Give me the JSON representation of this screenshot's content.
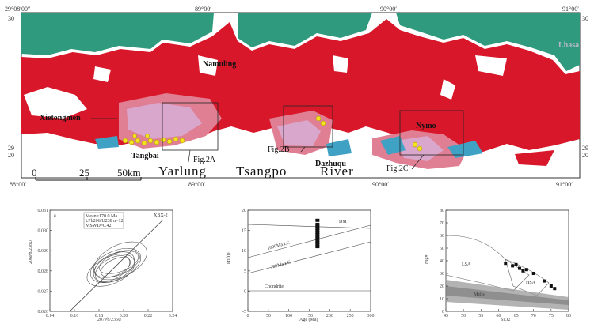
{
  "map": {
    "coords": {
      "top_left": "29°08′00″",
      "top_89": "89°00′",
      "top_90": "90°00′",
      "top_right": "91°00′",
      "left_top": "30",
      "left_29": "29",
      "left_20": "20",
      "right_top": "30",
      "right_29": "29",
      "right_20": "20",
      "bottom_left": "88°00′",
      "bottom_89": "89°00′",
      "bottom_90": "90°00′",
      "bottom_right": "91°00′"
    },
    "places": {
      "namuling": "Namuling",
      "xietongmen": "Xietongmen",
      "tangbai": "Tangbai",
      "dazhuqu": "Dazhuqu",
      "nymo": "Nymo",
      "lhasa": "Lhasa"
    },
    "figs": {
      "fig2a": "Fig.2A",
      "fig2b": "Fig.2B",
      "fig2c": "Fig.2C"
    },
    "river": [
      "Yarlung",
      "Tsangpo",
      "River"
    ],
    "scale": {
      "s0": "0",
      "s25": "25",
      "s50": "50km"
    },
    "colors": {
      "red": "#d8182a",
      "green": "#2f9a7e",
      "pink": "#e07f93",
      "lilac": "#d9a6cc",
      "blue": "#3fa1c4",
      "yellow": "#f3e21c"
    }
  },
  "panels": {
    "concordia": {
      "sample": "XBX-2",
      "inset": [
        "Mean=170.0 Ma",
        "±Pb206/U238 n=12",
        "MSWD=0.42"
      ],
      "x_label": "207Pb/235U",
      "y_label": "206Pb/238U",
      "x_ticks": [
        "0.14",
        "0.16",
        "0.18",
        "0.20",
        "0.22",
        "0.24"
      ],
      "y_ticks": [
        "0.031",
        "0.030",
        "0.029",
        "0.028",
        "0.027",
        "0.026"
      ],
      "panel_tag": "a"
    },
    "epsilon": {
      "y_label": "εHf(t)",
      "x_label": "Age (Ma)",
      "y_ticks": [
        "20",
        "15",
        "10",
        "5",
        "0",
        "-5"
      ],
      "x_ticks": [
        "0",
        "50",
        "100",
        "150",
        "200",
        "250",
        "300"
      ],
      "dm": "DM",
      "lc1": "1000Ma LC",
      "lc2": "720Ma LC",
      "chur": "Chondrite"
    },
    "mg": {
      "y_label": "Mg#",
      "x_label": "SiO2",
      "y_ticks": [
        "80",
        "70",
        "60",
        "50",
        "40",
        "30",
        "20",
        "10",
        "0"
      ],
      "x_ticks": [
        "45",
        "50",
        "55",
        "60",
        "65",
        "70",
        "75",
        "80"
      ],
      "lsa": "LSA",
      "hsa": "HSA",
      "melt": "Melts"
    }
  },
  "chart_data": [
    {
      "type": "scatter",
      "title": "XBX-2",
      "xlabel": "207Pb/235U",
      "ylabel": "206Pb/238U",
      "xlim": [
        0.14,
        0.24
      ],
      "ylim": [
        0.026,
        0.031
      ],
      "series": [
        {
          "x": [
            0.175,
            0.178,
            0.18,
            0.182,
            0.185,
            0.179,
            0.183,
            0.176,
            0.181,
            0.184,
            0.177,
            0.186
          ],
          "y": [
            0.0265,
            0.0266,
            0.0267,
            0.0268,
            0.0269,
            0.0266,
            0.0268,
            0.0265,
            0.0267,
            0.0269,
            0.0266,
            0.027
          ]
        }
      ]
    },
    {
      "type": "scatter",
      "xlabel": "Age (Ma)",
      "ylabel": "εHf(t)",
      "xlim": [
        0,
        300
      ],
      "ylim": [
        -5,
        20
      ],
      "series": [
        {
          "x": [
            170,
            170,
            170,
            170,
            170,
            170,
            170,
            170,
            170,
            170,
            170,
            170,
            170
          ],
          "y": [
            17.5,
            16.5,
            16,
            15.5,
            15,
            14.5,
            14,
            13.5,
            13,
            12.5,
            12,
            11.5,
            11
          ]
        }
      ]
    },
    {
      "type": "scatter",
      "xlabel": "SiO2",
      "ylabel": "Mg#",
      "xlim": [
        45,
        80
      ],
      "ylim": [
        0,
        80
      ],
      "series": [
        {
          "x": [
            62,
            64,
            65,
            66,
            67,
            68,
            70,
            73,
            75,
            76
          ],
          "y": [
            38,
            36,
            37,
            34,
            32,
            33,
            30,
            24,
            20,
            18
          ]
        }
      ]
    }
  ]
}
